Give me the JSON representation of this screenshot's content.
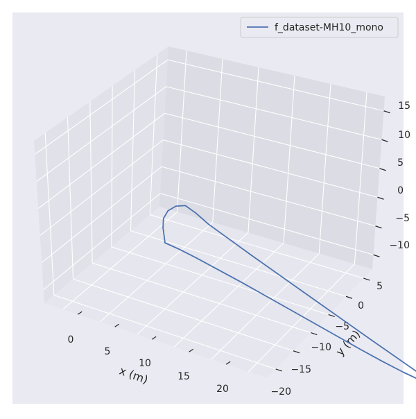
{
  "chart_data": {
    "type": "line",
    "projection": "3d",
    "title": "",
    "xlabel": "x (m)",
    "ylabel": "y (m)",
    "zlabel": "",
    "xlim": [
      -5,
      25
    ],
    "ylim": [
      -20,
      10
    ],
    "zlim": [
      -12,
      16
    ],
    "x_ticks": [
      "0",
      "5",
      "10",
      "15",
      "20"
    ],
    "y_ticks": [
      "−20",
      "−15",
      "−10",
      "−5",
      "0",
      "5"
    ],
    "z_ticks": [
      "−10",
      "−5",
      "0",
      "5",
      "10",
      "15"
    ],
    "grid": true,
    "legend": {
      "position": "top-right",
      "entries": [
        "f_dataset-MH10_mono"
      ]
    },
    "series": [
      {
        "name": "f_dataset-MH10_mono",
        "color": "#4c72b0",
        "points": [
          {
            "x": 0,
            "y": 0,
            "z": 0
          },
          {
            "x": 1.5,
            "y": -0.4,
            "z": -0.2
          },
          {
            "x": 3,
            "y": -1,
            "z": -0.5
          },
          {
            "x": 5,
            "y": -2,
            "z": -1
          },
          {
            "x": 7,
            "y": -3,
            "z": -1.5
          },
          {
            "x": 9,
            "y": -5,
            "z": -2
          },
          {
            "x": 11,
            "y": -7,
            "z": -2.5
          },
          {
            "x": 13,
            "y": -9,
            "z": -3
          },
          {
            "x": 15,
            "y": -11,
            "z": -3.5
          },
          {
            "x": 16.5,
            "y": -12.5,
            "z": -3.8
          },
          {
            "x": 18,
            "y": -14,
            "z": -4
          },
          {
            "x": 19,
            "y": -15,
            "z": -4
          },
          {
            "x": 19.5,
            "y": -15.3,
            "z": -3.6
          },
          {
            "x": 19.3,
            "y": -15,
            "z": -3
          },
          {
            "x": 16,
            "y": -11.5,
            "z": -1
          },
          {
            "x": 12,
            "y": -7.5,
            "z": 1.5
          },
          {
            "x": 8,
            "y": -3.5,
            "z": 4
          },
          {
            "x": 5,
            "y": -0.5,
            "z": 6
          },
          {
            "x": 4,
            "y": 0.2,
            "z": 7
          },
          {
            "x": 3.2,
            "y": 0.8,
            "z": 7.5
          },
          {
            "x": 2.2,
            "y": 1,
            "z": 6.8
          },
          {
            "x": 1.2,
            "y": 1,
            "z": 5.5
          },
          {
            "x": 0.4,
            "y": 0.7,
            "z": 4
          },
          {
            "x": 0,
            "y": 0.3,
            "z": 2.5
          },
          {
            "x": 0,
            "y": 0,
            "z": 0
          }
        ]
      }
    ]
  }
}
